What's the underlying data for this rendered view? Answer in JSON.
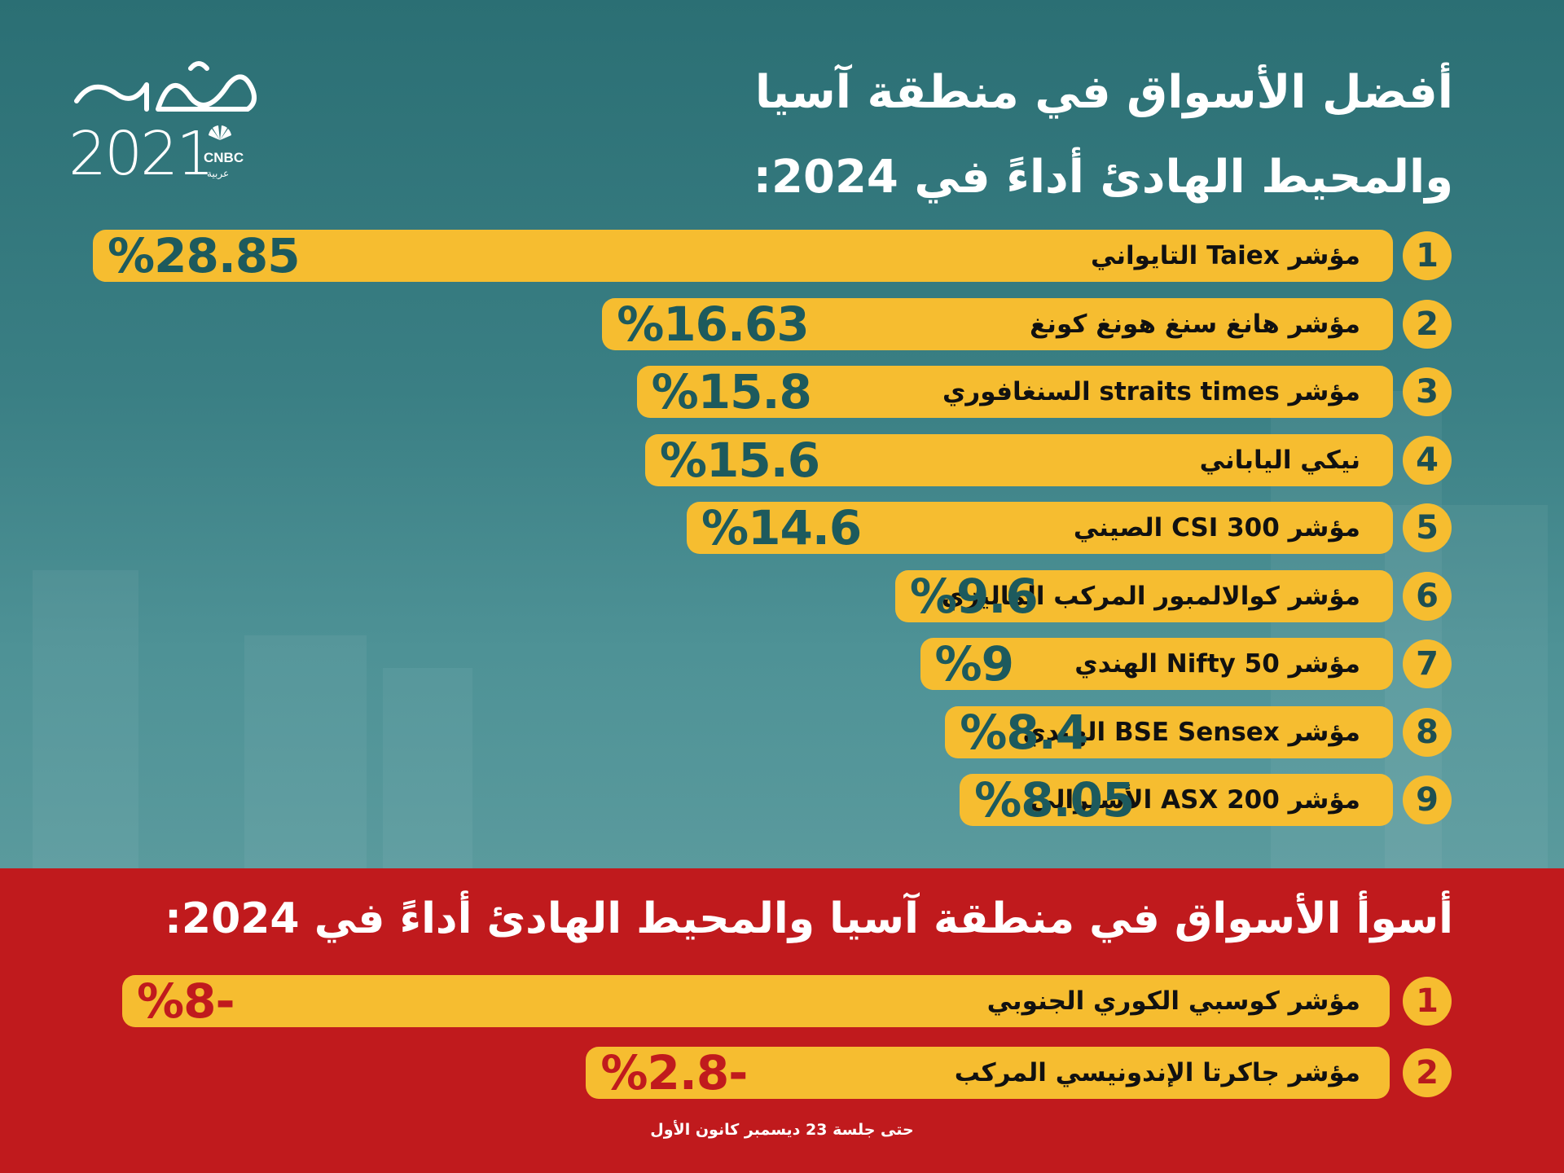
{
  "brand": {
    "logo_text": "حصاد",
    "logo_year": "2021",
    "network": "CNBC",
    "network_arabic": "عربية"
  },
  "title_line1": "أفضل الأسواق في منطقة آسيا",
  "title_line2": "والمحيط الهادئ أداءً في 2024:",
  "worst_title": "أسوأ الأسواق في منطقة آسيا والمحيط الهادئ أداءً في 2024:",
  "footnote": "حتى جلسة 23 ديسمبر كانون الأول",
  "colors": {
    "teal_bg": "#2f7478",
    "red_bg": "#c01a1d",
    "bar_yellow": "#f6bd30",
    "value_teal": "#1d5a5d",
    "value_red": "#c01a1d"
  },
  "chart_data": [
    {
      "type": "bar",
      "orientation": "horizontal",
      "title": "أفضل الأسواق في منطقة آسيا والمحيط الهادئ أداءً في 2024:",
      "unit": "%",
      "ranks": [
        "1",
        "2",
        "3",
        "4",
        "5",
        "6",
        "7",
        "8",
        "9"
      ],
      "categories": [
        "مؤشر Taiex التايواني",
        "مؤشر هانغ سنغ هونغ كونغ",
        "مؤشر straits times السنغافوري",
        "نيكي الياباني",
        "مؤشر CSI 300 الصيني",
        "مؤشر كوالالمبور المركب الماليزي",
        "مؤشر Nifty 50 الهندي",
        "مؤشر BSE Sensex الهندي",
        "مؤشر ASX 200 الأسترالي"
      ],
      "values": [
        28.85,
        16.63,
        15.8,
        15.6,
        14.6,
        9.6,
        9,
        8.4,
        8.05
      ],
      "value_labels": [
        "%28.85",
        "%16.63",
        "%15.8",
        "%15.6",
        "%14.6",
        "%9.6",
        "%9",
        "%8.4",
        "%8.05"
      ]
    },
    {
      "type": "bar",
      "orientation": "horizontal",
      "title": "أسوأ الأسواق في منطقة آسيا والمحيط الهادئ أداءً في 2024:",
      "unit": "%",
      "ranks": [
        "1",
        "2"
      ],
      "categories": [
        "مؤشر كوسبي الكوري الجنوبي",
        "مؤشر جاكرتا الإندونيسي المركب"
      ],
      "values": [
        -8,
        -2.8
      ],
      "value_labels": [
        "%8-",
        "%2.8-"
      ]
    }
  ]
}
